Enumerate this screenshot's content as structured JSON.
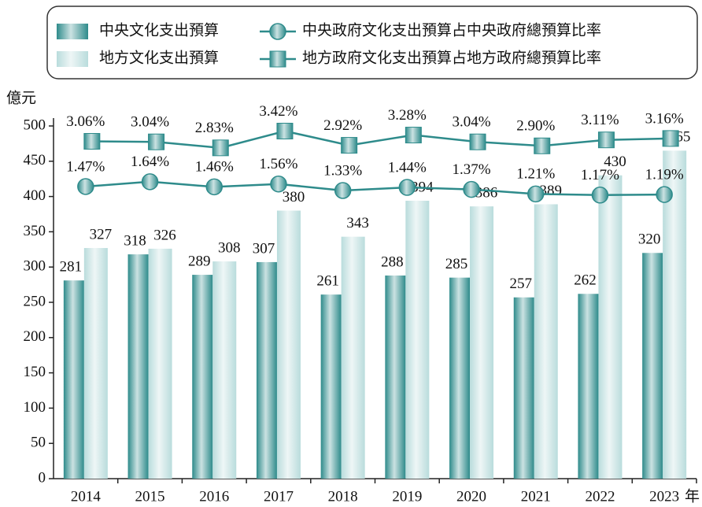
{
  "chart_data": {
    "type": "bar",
    "y_label": "億元",
    "x_label": "年",
    "categories": [
      "2014",
      "2015",
      "2016",
      "2017",
      "2018",
      "2019",
      "2020",
      "2021",
      "2022",
      "2023"
    ],
    "series": [
      {
        "name": "中央文化支出預算",
        "color": "#2e8b8b",
        "values": [
          281,
          318,
          289,
          307,
          261,
          288,
          285,
          257,
          262,
          320
        ]
      },
      {
        "name": "地方文化支出預算",
        "color": "#b9dcdc",
        "values": [
          327,
          326,
          308,
          380,
          343,
          394,
          386,
          389,
          430,
          465
        ]
      },
      {
        "name": "中央政府文化支出預算占中央政府總預算比率",
        "type": "line",
        "marker": "circle",
        "axis": "y2",
        "color": "#2e8b8b",
        "values": [
          1.47,
          1.64,
          1.46,
          1.56,
          1.33,
          1.44,
          1.37,
          1.21,
          1.17,
          1.19
        ],
        "value_labels": [
          "1.47%",
          "1.64%",
          "1.46%",
          "1.56%",
          "1.33%",
          "1.44%",
          "1.37%",
          "1.21%",
          "1.17%",
          "1.19%"
        ]
      },
      {
        "name": "地方政府文化支出預算占地方政府總預算比率",
        "type": "line",
        "marker": "square",
        "axis": "y2",
        "color": "#2e8b8b",
        "values": [
          3.06,
          3.04,
          2.83,
          3.42,
          2.92,
          3.28,
          3.04,
          2.9,
          3.11,
          3.16
        ],
        "value_labels": [
          "3.06%",
          "3.04%",
          "2.83%",
          "3.42%",
          "2.92%",
          "3.28%",
          "3.04%",
          "2.90%",
          "3.11%",
          "3.16%"
        ]
      }
    ],
    "ylim": [
      0,
      500
    ],
    "yticks": [
      0,
      50,
      100,
      150,
      200,
      250,
      300,
      350,
      400,
      450,
      500
    ],
    "y2lim": [
      -8.8,
      3.6
    ]
  }
}
